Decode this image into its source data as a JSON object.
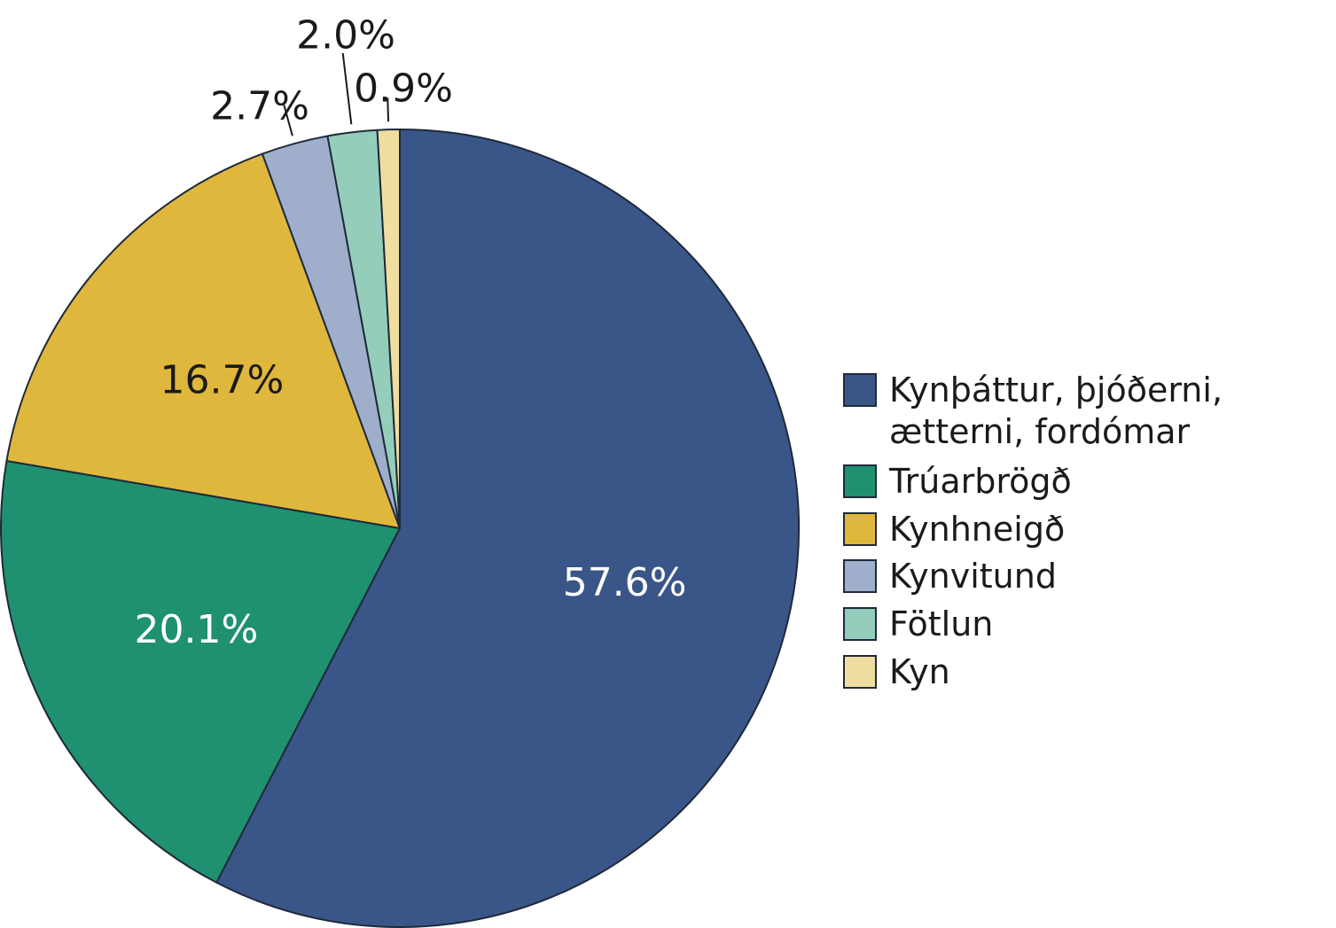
{
  "chart_data": {
    "type": "pie",
    "title": "",
    "legend_position": "right",
    "slices": [
      {
        "label": "Kynþáttur, þjóðerni, ætterni, fordómar",
        "legend_lines": [
          "Kynþáttur, þjóðerni,",
          "ætterni, fordómar"
        ],
        "value": 57.6,
        "value_label": "57.6%",
        "color": "#3a5688",
        "label_color": "#ffffff",
        "label_placement": "inside"
      },
      {
        "label": "Trúarbrögð",
        "legend_lines": [
          "Trúarbrögð"
        ],
        "value": 20.1,
        "value_label": "20.1%",
        "color": "#1f9170",
        "label_color": "#ffffff",
        "label_placement": "inside"
      },
      {
        "label": "Kynhneigð",
        "legend_lines": [
          "Kynhneigð"
        ],
        "value": 16.7,
        "value_label": "16.7%",
        "color": "#e0b73d",
        "label_color": "#1a1a1a",
        "label_placement": "inside"
      },
      {
        "label": "Kynvitund",
        "legend_lines": [
          "Kynvitund"
        ],
        "value": 2.7,
        "value_label": "2.7%",
        "color": "#9eaecb",
        "label_color": "#1a1a1a",
        "label_placement": "outside"
      },
      {
        "label": "Fötlun",
        "legend_lines": [
          "Fötlun"
        ],
        "value": 2.0,
        "value_label": "2.0%",
        "color": "#94cebb",
        "label_color": "#1a1a1a",
        "label_placement": "outside"
      },
      {
        "label": "Kyn",
        "legend_lines": [
          "Kyn"
        ],
        "value": 0.9,
        "value_label": "0.9%",
        "color": "#f0dea0",
        "label_color": "#1a1a1a",
        "label_placement": "outside"
      }
    ]
  }
}
